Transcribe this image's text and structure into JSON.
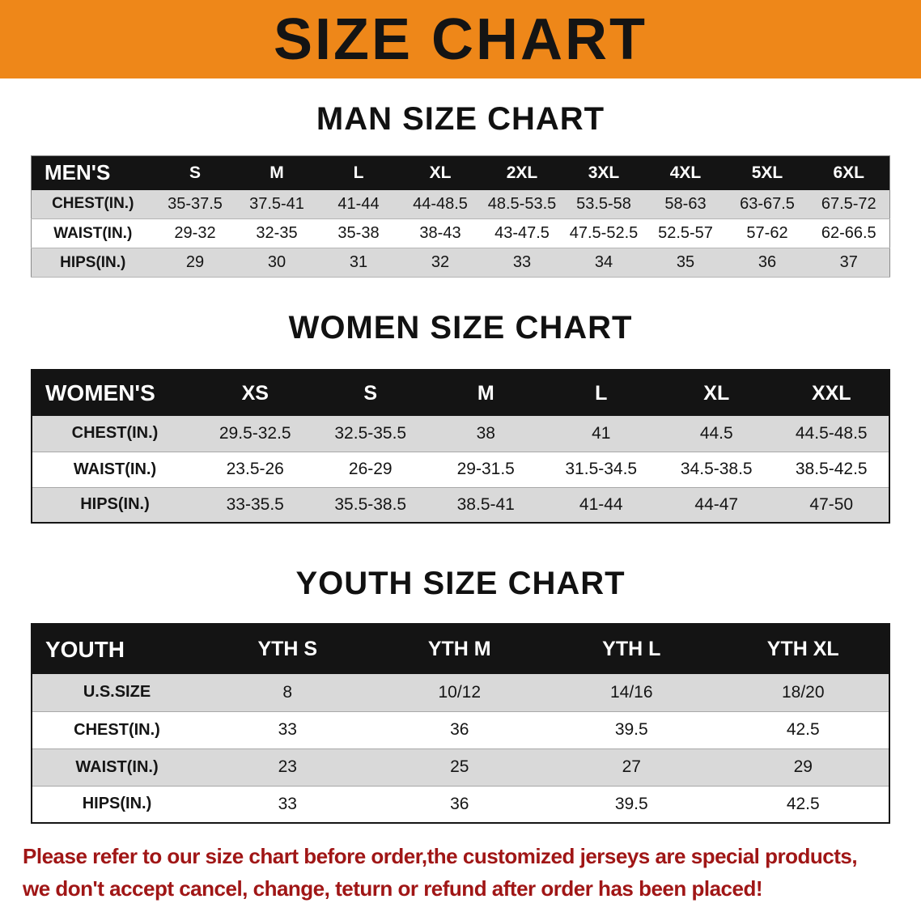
{
  "colors": {
    "banner_bg": "#ee8719",
    "footer_text": "#a01616",
    "header_row_bg": "#141414",
    "row_alt_bg": "#d9d9d9"
  },
  "banner": {
    "title": "SIZE CHART"
  },
  "sections": [
    {
      "heading": "MAN SIZE CHART",
      "table": {
        "header": [
          "MEN'S",
          "S",
          "M",
          "L",
          "XL",
          "2XL",
          "3XL",
          "4XL",
          "5XL",
          "6XL"
        ],
        "rows": [
          [
            "CHEST(IN.)",
            "35-37.5",
            "37.5-41",
            "41-44",
            "44-48.5",
            "48.5-53.5",
            "53.5-58",
            "58-63",
            "63-67.5",
            "67.5-72"
          ],
          [
            "WAIST(IN.)",
            "29-32",
            "32-35",
            "35-38",
            "38-43",
            "43-47.5",
            "47.5-52.5",
            "52.5-57",
            "57-62",
            "62-66.5"
          ],
          [
            "HIPS(IN.)",
            "29",
            "30",
            "31",
            "32",
            "33",
            "34",
            "35",
            "36",
            "37"
          ]
        ]
      }
    },
    {
      "heading": "WOMEN SIZE CHART",
      "table": {
        "header": [
          "WOMEN'S",
          "XS",
          "S",
          "M",
          "L",
          "XL",
          "XXL"
        ],
        "rows": [
          [
            "CHEST(IN.)",
            "29.5-32.5",
            "32.5-35.5",
            "38",
            "41",
            "44.5",
            "44.5-48.5"
          ],
          [
            "WAIST(IN.)",
            "23.5-26",
            "26-29",
            "29-31.5",
            "31.5-34.5",
            "34.5-38.5",
            "38.5-42.5"
          ],
          [
            "HIPS(IN.)",
            "33-35.5",
            "35.5-38.5",
            "38.5-41",
            "41-44",
            "44-47",
            "47-50"
          ]
        ]
      }
    },
    {
      "heading": "YOUTH SIZE CHART",
      "table": {
        "header": [
          "YOUTH",
          "YTH S",
          "YTH M",
          "YTH L",
          "YTH XL"
        ],
        "rows": [
          [
            "U.S.SIZE",
            "8",
            "10/12",
            "14/16",
            "18/20"
          ],
          [
            "CHEST(IN.)",
            "33",
            "36",
            "39.5",
            "42.5"
          ],
          [
            "WAIST(IN.)",
            "23",
            "25",
            "27",
            "29"
          ],
          [
            "HIPS(IN.)",
            "33",
            "36",
            "39.5",
            "42.5"
          ]
        ]
      }
    }
  ],
  "footer": {
    "line1": "Please refer to our size chart before order,the customized jerseys are special products,",
    "line2": "we don't accept cancel, change, teturn or refund after order has been placed!"
  }
}
